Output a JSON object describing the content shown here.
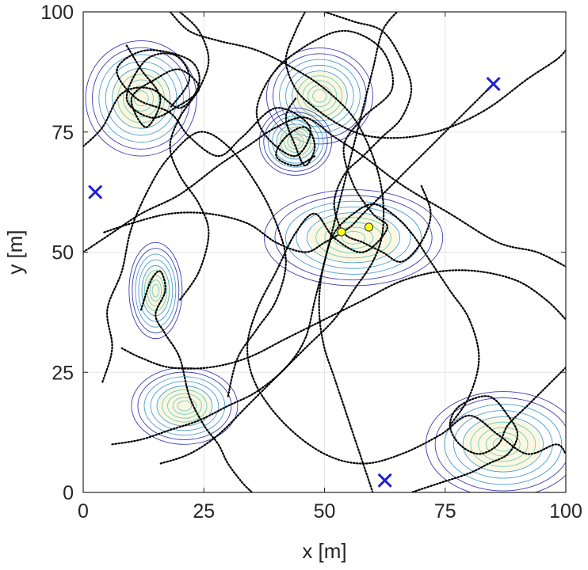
{
  "chart_data": {
    "type": "scatter",
    "title": "",
    "xlabel": "x [m]",
    "ylabel": "y [m]",
    "xlim": [
      0,
      100
    ],
    "ylim": [
      0,
      100
    ],
    "xticks": [
      0,
      25,
      50,
      75,
      100
    ],
    "yticks": [
      0,
      25,
      50,
      75,
      100
    ],
    "grid": true,
    "colors": {
      "axes": "#262626",
      "grid": "#e6e6e6",
      "trajectory": "#000000",
      "marker_x": "#1f1fd6",
      "marker_dot": "#ffff1a",
      "contour_outer": "#1a1aa8",
      "contour_mid": "#2a8cc2",
      "contour_inner": "#55c6c0",
      "contour_core": "#f7f0c8"
    },
    "series": [
      {
        "marker": "x",
        "points": [
          [
            2.5,
            62.5
          ],
          [
            85,
            85
          ],
          [
            62.5,
            2.5
          ]
        ]
      },
      {
        "marker": "circle",
        "points": [
          [
            53.5,
            54.2
          ],
          [
            59.2,
            55.2
          ]
        ]
      }
    ],
    "contour_fields": [
      {
        "center": [
          12,
          82
        ],
        "spread": [
          11.5,
          12
        ]
      },
      {
        "center": [
          49,
          82.5
        ],
        "spread": [
          11,
          10
        ]
      },
      {
        "center": [
          44,
          73
        ],
        "spread": [
          7.5,
          7
        ]
      },
      {
        "center": [
          56,
          53
        ],
        "spread": [
          18.5,
          10
        ]
      },
      {
        "center": [
          15,
          42
        ],
        "spread": [
          5.5,
          10
        ]
      },
      {
        "center": [
          21,
          18
        ],
        "spread": [
          11,
          8
        ]
      },
      {
        "center": [
          87,
          10
        ],
        "spread": [
          16,
          11
        ]
      }
    ],
    "trajectories": [
      [
        [
          0,
          72
        ],
        [
          4,
          76
        ],
        [
          8,
          83
        ],
        [
          14,
          84
        ],
        [
          20,
          80
        ],
        [
          24,
          85
        ],
        [
          22,
          90
        ],
        [
          13,
          92
        ],
        [
          7,
          88
        ],
        [
          11,
          82
        ],
        [
          18,
          79
        ],
        [
          22,
          74
        ],
        [
          28,
          70
        ],
        [
          33,
          74
        ],
        [
          40,
          80
        ],
        [
          47,
          76
        ],
        [
          44,
          70
        ],
        [
          38,
          74
        ],
        [
          36,
          80
        ],
        [
          40,
          88
        ],
        [
          48,
          94
        ],
        [
          55,
          96
        ],
        [
          62,
          92
        ],
        [
          64,
          84
        ],
        [
          58,
          78
        ],
        [
          54,
          72
        ],
        [
          56,
          64
        ],
        [
          60,
          58
        ],
        [
          63,
          55
        ],
        [
          58,
          50
        ],
        [
          52,
          53
        ],
        [
          48,
          58
        ],
        [
          44,
          54
        ],
        [
          40,
          46
        ],
        [
          36,
          38
        ],
        [
          34,
          30
        ],
        [
          36,
          22
        ],
        [
          42,
          14
        ],
        [
          50,
          8
        ],
        [
          58,
          6
        ],
        [
          66,
          8
        ],
        [
          74,
          12
        ],
        [
          80,
          16
        ],
        [
          86,
          12
        ],
        [
          92,
          8
        ],
        [
          98,
          10
        ],
        [
          100,
          8
        ]
      ],
      [
        [
          9,
          93
        ],
        [
          12,
          88
        ],
        [
          16,
          82
        ],
        [
          13,
          76
        ],
        [
          10,
          82
        ],
        [
          15,
          86
        ],
        [
          20,
          88
        ],
        [
          24,
          84
        ],
        [
          19,
          80
        ],
        [
          14,
          78
        ],
        [
          9,
          82
        ],
        [
          13,
          90
        ],
        [
          19,
          91
        ],
        [
          22,
          86
        ],
        [
          18,
          80
        ]
      ],
      [
        [
          0,
          50
        ],
        [
          6,
          54
        ],
        [
          12,
          58
        ],
        [
          20,
          62
        ],
        [
          28,
          68
        ],
        [
          34,
          72
        ],
        [
          40,
          76
        ],
        [
          46,
          78
        ],
        [
          52,
          74
        ],
        [
          58,
          70
        ],
        [
          66,
          64
        ],
        [
          76,
          58
        ],
        [
          86,
          52
        ],
        [
          94,
          50
        ],
        [
          100,
          47
        ]
      ],
      [
        [
          4,
          23
        ],
        [
          6,
          30
        ],
        [
          5,
          38
        ],
        [
          8,
          46
        ],
        [
          10,
          55
        ],
        [
          14,
          64
        ],
        [
          18,
          70
        ],
        [
          24,
          75
        ],
        [
          30,
          72
        ],
        [
          36,
          64
        ],
        [
          40,
          56
        ],
        [
          42,
          48
        ],
        [
          40,
          40
        ],
        [
          36,
          34
        ],
        [
          32,
          28
        ],
        [
          30,
          20
        ]
      ],
      [
        [
          6,
          10
        ],
        [
          12,
          11
        ],
        [
          18,
          13
        ],
        [
          24,
          15
        ],
        [
          30,
          18
        ],
        [
          36,
          21
        ],
        [
          42,
          26
        ],
        [
          46,
          32
        ],
        [
          48,
          40
        ],
        [
          50,
          48
        ],
        [
          52,
          56
        ],
        [
          54,
          64
        ],
        [
          56,
          72
        ],
        [
          58,
          80
        ],
        [
          60,
          88
        ],
        [
          62,
          96
        ],
        [
          65,
          100
        ]
      ],
      [
        [
          12,
          38
        ],
        [
          14,
          44
        ],
        [
          16,
          46
        ],
        [
          17,
          42
        ],
        [
          15,
          37
        ],
        [
          17,
          33
        ],
        [
          20,
          28
        ],
        [
          22,
          20
        ],
        [
          25,
          14
        ],
        [
          28,
          10
        ],
        [
          30,
          6
        ],
        [
          33,
          2
        ],
        [
          35,
          0
        ]
      ],
      [
        [
          50,
          100
        ],
        [
          56,
          98
        ],
        [
          62,
          96
        ],
        [
          66,
          90
        ],
        [
          68,
          84
        ],
        [
          66,
          78
        ],
        [
          62,
          74
        ],
        [
          58,
          70
        ],
        [
          54,
          66
        ],
        [
          52,
          60
        ],
        [
          54,
          54
        ],
        [
          58,
          52
        ],
        [
          62,
          50
        ],
        [
          66,
          48
        ],
        [
          70,
          52
        ],
        [
          72,
          58
        ],
        [
          70,
          64
        ]
      ],
      [
        [
          44,
          82
        ],
        [
          42,
          78
        ],
        [
          44,
          72
        ],
        [
          46,
          68
        ],
        [
          48,
          72
        ],
        [
          46,
          76
        ],
        [
          42,
          74
        ],
        [
          40,
          70
        ],
        [
          44,
          68
        ],
        [
          48,
          70
        ]
      ],
      [
        [
          18,
          100
        ],
        [
          22,
          96
        ],
        [
          28,
          94
        ],
        [
          36,
          92
        ],
        [
          44,
          88
        ],
        [
          50,
          84
        ],
        [
          56,
          78
        ],
        [
          60,
          70
        ],
        [
          62,
          62
        ],
        [
          62,
          54
        ],
        [
          60,
          48
        ],
        [
          56,
          42
        ],
        [
          52,
          36
        ],
        [
          46,
          30
        ],
        [
          40,
          24
        ],
        [
          34,
          18
        ],
        [
          28,
          12
        ],
        [
          22,
          8
        ],
        [
          16,
          6
        ]
      ],
      [
        [
          100,
          26
        ],
        [
          96,
          22
        ],
        [
          92,
          18
        ],
        [
          88,
          14
        ],
        [
          86,
          10
        ],
        [
          82,
          8
        ],
        [
          78,
          10
        ],
        [
          76,
          14
        ],
        [
          78,
          18
        ],
        [
          84,
          20
        ],
        [
          88,
          16
        ],
        [
          90,
          12
        ],
        [
          88,
          8
        ],
        [
          84,
          6
        ],
        [
          80,
          4
        ],
        [
          74,
          2
        ],
        [
          68,
          0
        ]
      ],
      [
        [
          85,
          85
        ],
        [
          80,
          80
        ],
        [
          74,
          74
        ],
        [
          68,
          68
        ],
        [
          62,
          62
        ],
        [
          58,
          58
        ],
        [
          55,
          55
        ],
        [
          50,
          52
        ],
        [
          46,
          50
        ],
        [
          40,
          52
        ],
        [
          34,
          56
        ],
        [
          26,
          58
        ],
        [
          18,
          58
        ],
        [
          10,
          56
        ],
        [
          4,
          54
        ]
      ],
      [
        [
          20,
          100
        ],
        [
          24,
          96
        ],
        [
          26,
          90
        ],
        [
          24,
          84
        ],
        [
          20,
          78
        ],
        [
          18,
          72
        ],
        [
          20,
          66
        ],
        [
          24,
          60
        ],
        [
          26,
          54
        ],
        [
          24,
          46
        ],
        [
          20,
          40
        ]
      ],
      [
        [
          46,
          100
        ],
        [
          44,
          96
        ],
        [
          42,
          90
        ],
        [
          44,
          84
        ],
        [
          48,
          80
        ],
        [
          54,
          76
        ],
        [
          60,
          74
        ],
        [
          68,
          74
        ],
        [
          76,
          76
        ],
        [
          84,
          80
        ],
        [
          92,
          86
        ],
        [
          98,
          90
        ],
        [
          100,
          92
        ]
      ],
      [
        [
          8,
          30
        ],
        [
          12,
          28
        ],
        [
          18,
          26
        ],
        [
          26,
          26
        ],
        [
          34,
          28
        ],
        [
          42,
          32
        ],
        [
          50,
          36
        ],
        [
          58,
          40
        ],
        [
          66,
          44
        ],
        [
          74,
          46
        ],
        [
          82,
          46
        ],
        [
          90,
          44
        ],
        [
          96,
          40
        ],
        [
          100,
          36
        ]
      ],
      [
        [
          60,
          0
        ],
        [
          58,
          6
        ],
        [
          56,
          12
        ],
        [
          54,
          18
        ],
        [
          52,
          24
        ],
        [
          50,
          30
        ],
        [
          49,
          36
        ],
        [
          49,
          42
        ],
        [
          50,
          48
        ],
        [
          52,
          54
        ],
        [
          56,
          58
        ],
        [
          60,
          60
        ],
        [
          64,
          58
        ],
        [
          68,
          54
        ],
        [
          72,
          48
        ],
        [
          76,
          42
        ],
        [
          80,
          36
        ],
        [
          82,
          28
        ],
        [
          80,
          20
        ],
        [
          76,
          14
        ]
      ]
    ]
  }
}
